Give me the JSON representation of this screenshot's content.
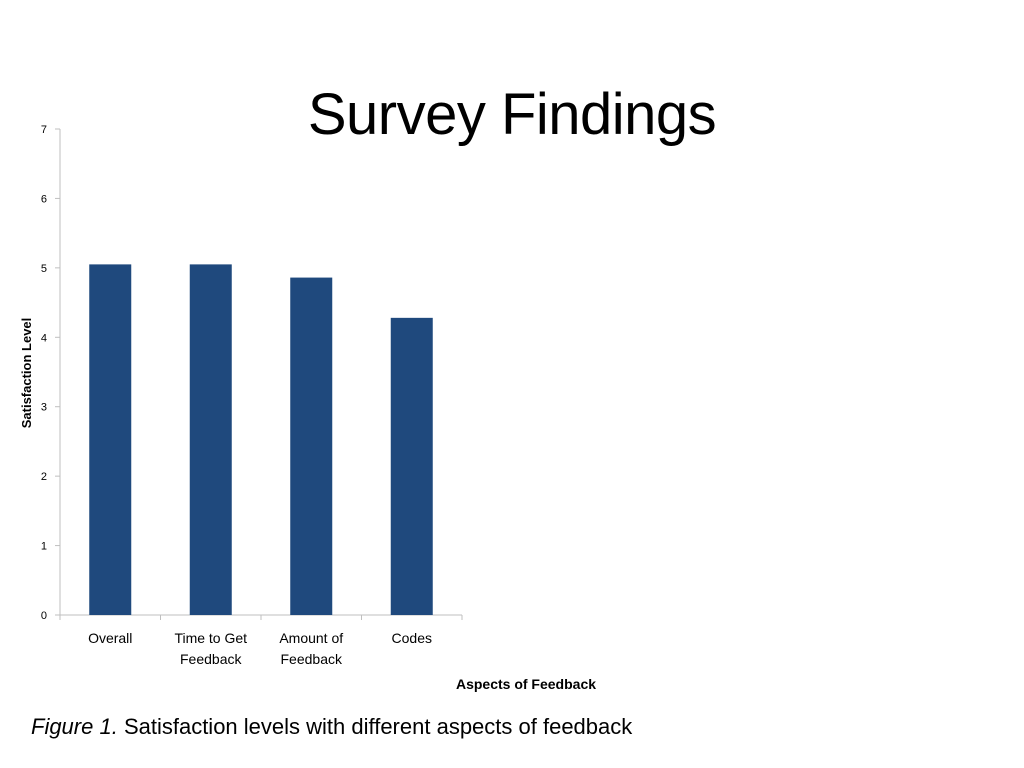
{
  "slide": {
    "title": "Survey Findings",
    "caption_label": "Figure 1.",
    "caption_text": " Satisfaction levels with different aspects of feedback"
  },
  "colors": {
    "bar": "#1F497D",
    "axis": "#BFBFBF",
    "text": "#000000"
  },
  "chart_data": {
    "type": "bar",
    "categories": [
      [
        "Overall"
      ],
      [
        "Time to Get",
        "Feedback"
      ],
      [
        "Amount of",
        "Feedback"
      ],
      [
        "Codes"
      ]
    ],
    "values": [
      5.05,
      5.05,
      4.86,
      4.28
    ],
    "xlabel": "Aspects of Feedback",
    "ylabel": "Satisfaction Level",
    "ylim": [
      0,
      7
    ],
    "yticks": [
      0,
      1,
      2,
      3,
      4,
      5,
      6,
      7
    ],
    "grid": false,
    "legend": "none"
  }
}
